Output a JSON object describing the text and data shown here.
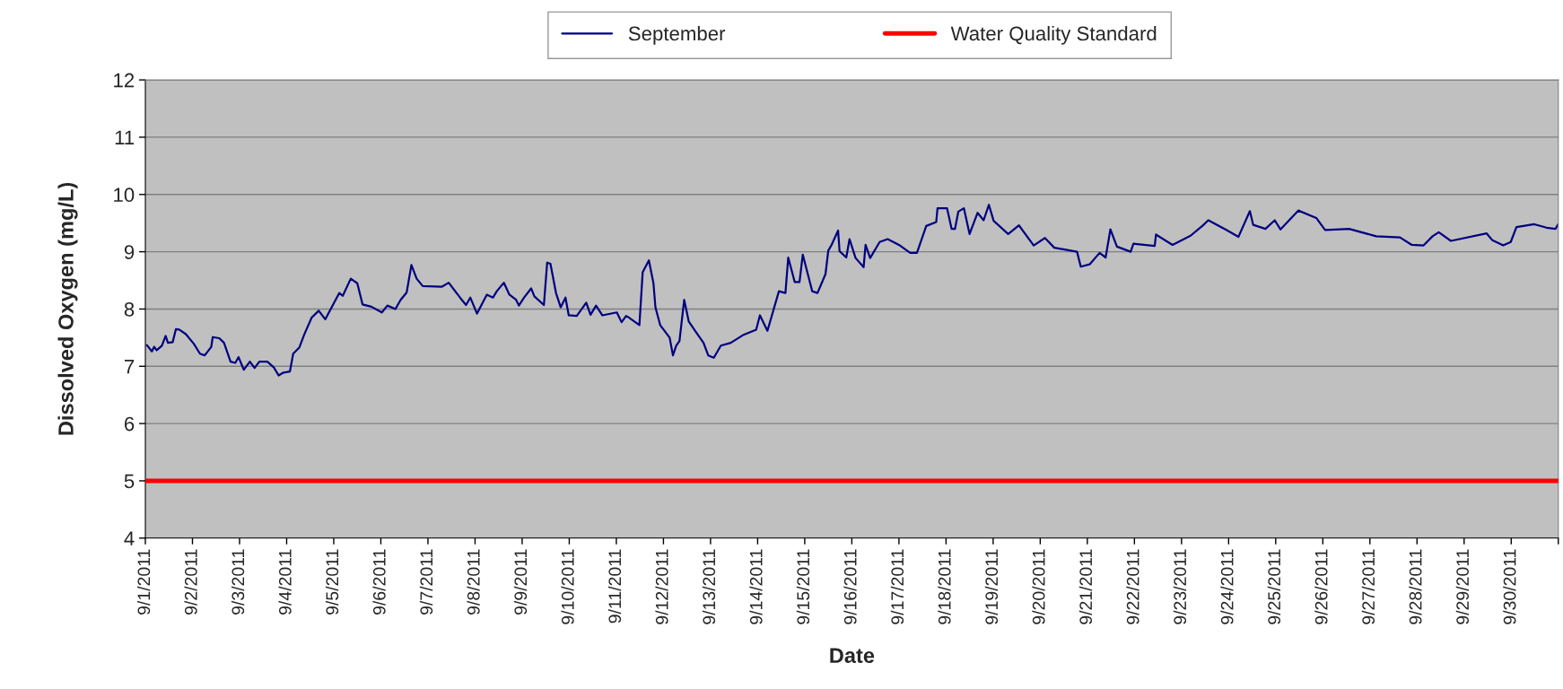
{
  "chart_data": {
    "type": "line",
    "xlabel": "Date",
    "ylabel": "Dissolved Oxygen (mg/L)",
    "x": [
      "2011-09-01T00:45",
      "2011-09-01T03:20",
      "2011-09-01T04:30",
      "2011-09-01T05:45",
      "2011-09-01T08:25",
      "2011-09-01T10:20",
      "2011-09-01T11:30",
      "2011-09-01T13:55",
      "2011-09-01T15:35",
      "2011-09-01T17:15",
      "2011-09-01T20:40",
      "2011-09-02T00:45",
      "2011-09-02T03:50",
      "2011-09-02T06:15",
      "2011-09-02T09:35",
      "2011-09-02T10:20",
      "2011-09-02T13:40",
      "2011-09-02T16:05",
      "2011-09-02T19:25",
      "2011-09-02T21:50",
      "2011-09-02T23:30",
      "2011-09-03T02:10",
      "2011-09-03T05:15",
      "2011-09-03T07:40",
      "2011-09-03T10:05",
      "2011-09-03T14:10",
      "2011-09-03T17:30",
      "2011-09-03T19:55",
      "2011-09-03T22:20",
      "2011-09-04T01:40",
      "2011-09-04T03:20",
      "2011-09-04T06:30",
      "2011-09-04T08:55",
      "2011-09-04T12:45",
      "2011-09-04T16:20",
      "2011-09-04T19:40",
      "2011-09-05T02:50",
      "2011-09-05T04:35",
      "2011-09-05T08:40",
      "2011-09-05T12:00",
      "2011-09-05T14:40",
      "2011-09-05T19:10",
      "2011-09-06T00:30",
      "2011-09-06T03:20",
      "2011-09-06T07:25",
      "2011-09-06T10:05",
      "2011-09-06T13:10",
      "2011-09-06T15:35",
      "2011-09-06T18:15",
      "2011-09-06T21:20",
      "2011-09-07T07:10",
      "2011-09-07T10:35",
      "2011-09-07T16:20",
      "2011-09-07T19:25",
      "2011-09-07T21:35",
      "2011-09-08T01:00",
      "2011-09-08T06:00",
      "2011-09-08T09:10",
      "2011-09-08T11:05",
      "2011-09-08T14:40",
      "2011-09-08T17:30",
      "2011-09-08T20:55",
      "2011-09-08T22:20",
      "2011-09-09T01:00",
      "2011-09-09T04:35",
      "2011-09-09T06:15",
      "2011-09-09T11:05",
      "2011-09-09T12:45",
      "2011-09-09T14:25",
      "2011-09-09T17:15",
      "2011-09-09T19:40",
      "2011-09-09T22:05",
      "2011-09-09T23:45",
      "2011-09-10T03:50",
      "2011-09-10T08:40",
      "2011-09-10T10:50",
      "2011-09-10T13:40",
      "2011-09-10T16:50",
      "2011-09-11T00:15",
      "2011-09-11T02:40",
      "2011-09-11T05:00",
      "2011-09-11T06:00",
      "2011-09-11T11:45",
      "2011-09-11T13:25",
      "2011-09-11T16:35",
      "2011-09-11T18:55",
      "2011-09-11T19:55",
      "2011-09-11T22:20",
      "2011-09-12T03:10",
      "2011-09-12T04:50",
      "2011-09-12T06:30",
      "2011-09-12T08:10",
      "2011-09-12T10:35",
      "2011-09-12T12:55",
      "2011-09-12T16:20",
      "2011-09-12T20:25",
      "2011-09-12T22:50",
      "2011-09-13T01:40",
      "2011-09-13T05:15",
      "2011-09-13T10:20",
      "2011-09-13T16:50",
      "2011-09-13T23:15",
      "2011-09-14T01:10",
      "2011-09-14T05:00",
      "2011-09-14T10:50",
      "2011-09-14T14:10",
      "2011-09-14T15:35",
      "2011-09-14T18:55",
      "2011-09-14T21:20",
      "2011-09-14T23:00",
      "2011-09-15T03:50",
      "2011-09-15T06:30",
      "2011-09-15T10:35",
      "2011-09-15T12:00",
      "2011-09-15T13:40",
      "2011-09-15T17:00",
      "2011-09-15T17:45",
      "2011-09-15T21:10",
      "2011-09-15T22:50",
      "2011-09-16T01:55",
      "2011-09-16T06:00",
      "2011-09-16T07:00",
      "2011-09-16T09:20",
      "2011-09-16T14:10",
      "2011-09-16T18:15",
      "2011-09-17T00:00",
      "2011-09-17T05:45",
      "2011-09-17T09:10",
      "2011-09-17T13:55",
      "2011-09-17T19:00",
      "2011-09-17T19:40",
      "2011-09-18T00:30",
      "2011-09-18T02:50",
      "2011-09-18T04:35",
      "2011-09-18T06:15",
      "2011-09-18T09:05",
      "2011-09-18T12:00",
      "2011-09-18T16:05",
      "2011-09-18T19:10",
      "2011-09-18T21:50",
      "2011-09-19T00:15",
      "2011-09-19T07:40",
      "2011-09-19T13:10",
      "2011-09-19T20:40",
      "2011-09-20T02:25",
      "2011-09-20T07:10",
      "2011-09-20T13:40",
      "2011-09-20T18:45",
      "2011-09-20T20:40",
      "2011-09-21T01:10",
      "2011-09-21T06:15",
      "2011-09-21T09:20",
      "2011-09-21T11:45",
      "2011-09-21T15:05",
      "2011-09-21T22:05",
      "2011-09-21T23:30",
      "2011-09-22T10:20",
      "2011-09-22T11:00",
      "2011-09-22T19:25",
      "2011-09-23T04:35",
      "2011-09-23T10:35",
      "2011-09-23T13:40",
      "2011-09-23T22:50",
      "2011-09-24T05:00",
      "2011-09-24T10:50",
      "2011-09-24T12:30",
      "2011-09-24T18:45",
      "2011-09-24T23:30",
      "2011-09-25T02:25",
      "2011-09-25T11:30",
      "2011-09-25T20:40",
      "2011-09-26T01:10",
      "2011-09-26T13:25",
      "2011-09-27T03:10",
      "2011-09-27T15:20",
      "2011-09-27T21:20",
      "2011-09-28T03:20",
      "2011-09-28T07:55",
      "2011-09-28T11:05",
      "2011-09-28T17:15",
      "2011-09-29T11:30",
      "2011-09-29T14:25",
      "2011-09-29T19:55",
      "2011-09-29T23:45",
      "2011-09-30T02:40",
      "2011-09-30T11:45",
      "2011-09-30T18:00",
      "2011-09-30T22:35",
      "2011-09-30T23:55"
    ],
    "series": [
      {
        "name": "September",
        "color": "#000080",
        "values": [
          7.37,
          7.26,
          7.34,
          7.28,
          7.36,
          7.53,
          7.41,
          7.42,
          7.65,
          7.64,
          7.56,
          7.39,
          7.22,
          7.19,
          7.34,
          7.51,
          7.49,
          7.41,
          7.08,
          7.06,
          7.16,
          6.94,
          7.08,
          6.97,
          7.08,
          7.08,
          6.98,
          6.84,
          6.89,
          6.91,
          7.22,
          7.33,
          7.55,
          7.85,
          7.97,
          7.82,
          8.28,
          8.23,
          8.53,
          8.45,
          8.08,
          8.04,
          7.94,
          8.06,
          8.0,
          8.16,
          8.29,
          8.77,
          8.53,
          8.4,
          8.39,
          8.46,
          8.2,
          8.07,
          8.2,
          7.92,
          8.25,
          8.2,
          8.31,
          8.46,
          8.25,
          8.16,
          8.06,
          8.2,
          8.36,
          8.22,
          8.07,
          8.81,
          8.79,
          8.28,
          8.03,
          8.2,
          7.89,
          7.88,
          8.11,
          7.9,
          8.06,
          7.89,
          7.94,
          7.77,
          7.88,
          7.86,
          7.72,
          8.64,
          8.85,
          8.45,
          8.03,
          7.72,
          7.5,
          7.19,
          7.36,
          7.44,
          8.16,
          7.78,
          7.61,
          7.41,
          7.19,
          7.15,
          7.36,
          7.41,
          7.55,
          7.64,
          7.89,
          7.62,
          8.31,
          8.28,
          8.9,
          8.47,
          8.47,
          8.95,
          8.31,
          8.28,
          8.61,
          9.02,
          9.12,
          9.37,
          9.01,
          8.9,
          9.22,
          8.89,
          8.73,
          9.12,
          8.89,
          9.17,
          9.22,
          9.12,
          8.98,
          8.98,
          9.45,
          9.52,
          9.76,
          9.76,
          9.4,
          9.4,
          9.7,
          9.76,
          9.31,
          9.68,
          9.55,
          9.82,
          9.54,
          9.31,
          9.46,
          9.11,
          9.24,
          9.07,
          9.03,
          9.0,
          8.74,
          8.78,
          8.98,
          8.9,
          9.39,
          9.09,
          9.0,
          9.14,
          9.1,
          9.3,
          9.12,
          9.28,
          9.45,
          9.55,
          9.38,
          9.26,
          9.71,
          9.47,
          9.4,
          9.55,
          9.39,
          9.72,
          9.59,
          9.38,
          9.4,
          9.27,
          9.25,
          9.12,
          9.11,
          9.27,
          9.34,
          9.19,
          9.32,
          9.2,
          9.11,
          9.17,
          9.43,
          9.48,
          9.42,
          9.4,
          9.48
        ]
      }
    ],
    "ref_lines": [
      {
        "axis": "y",
        "value": 5,
        "label": "Water Quality Standard",
        "color": "#ff0000"
      }
    ],
    "xlim": [
      "2011-09-01",
      "2011-10-01"
    ],
    "xticks": [
      {
        "value": "2011-09-01",
        "label": "9/1/2011"
      },
      {
        "value": "2011-09-02",
        "label": "9/2/2011"
      },
      {
        "value": "2011-09-03",
        "label": "9/3/2011"
      },
      {
        "value": "2011-09-04",
        "label": "9/4/2011"
      },
      {
        "value": "2011-09-05",
        "label": "9/5/2011"
      },
      {
        "value": "2011-09-06",
        "label": "9/6/2011"
      },
      {
        "value": "2011-09-07",
        "label": "9/7/2011"
      },
      {
        "value": "2011-09-08",
        "label": "9/8/2011"
      },
      {
        "value": "2011-09-09",
        "label": "9/9/2011"
      },
      {
        "value": "2011-09-10",
        "label": "9/10/2011"
      },
      {
        "value": "2011-09-11",
        "label": "9/11/2011"
      },
      {
        "value": "2011-09-12",
        "label": "9/12/2011"
      },
      {
        "value": "2011-09-13",
        "label": "9/13/2011"
      },
      {
        "value": "2011-09-14",
        "label": "9/14/2011"
      },
      {
        "value": "2011-09-15",
        "label": "9/15/2011"
      },
      {
        "value": "2011-09-16",
        "label": "9/16/2011"
      },
      {
        "value": "2011-09-17",
        "label": "9/17/2011"
      },
      {
        "value": "2011-09-18",
        "label": "9/18/2011"
      },
      {
        "value": "2011-09-19",
        "label": "9/19/2011"
      },
      {
        "value": "2011-09-20",
        "label": "9/20/2011"
      },
      {
        "value": "2011-09-21",
        "label": "9/21/2011"
      },
      {
        "value": "2011-09-22",
        "label": "9/22/2011"
      },
      {
        "value": "2011-09-23",
        "label": "9/23/2011"
      },
      {
        "value": "2011-09-24",
        "label": "9/24/2011"
      },
      {
        "value": "2011-09-25",
        "label": "9/25/2011"
      },
      {
        "value": "2011-09-26",
        "label": "9/26/2011"
      },
      {
        "value": "2011-09-27",
        "label": "9/27/2011"
      },
      {
        "value": "2011-09-28",
        "label": "9/28/2011"
      },
      {
        "value": "2011-09-29",
        "label": "9/29/2011"
      },
      {
        "value": "2011-09-30",
        "label": "9/30/2011"
      },
      {
        "value": "2011-10-01",
        "label": null
      }
    ],
    "ylim": [
      4,
      12
    ],
    "yticks": [
      4,
      5,
      6,
      7,
      8,
      9,
      10,
      11,
      12
    ],
    "grid": "y",
    "legend": "top",
    "marker": "none",
    "line_style": "solid"
  }
}
